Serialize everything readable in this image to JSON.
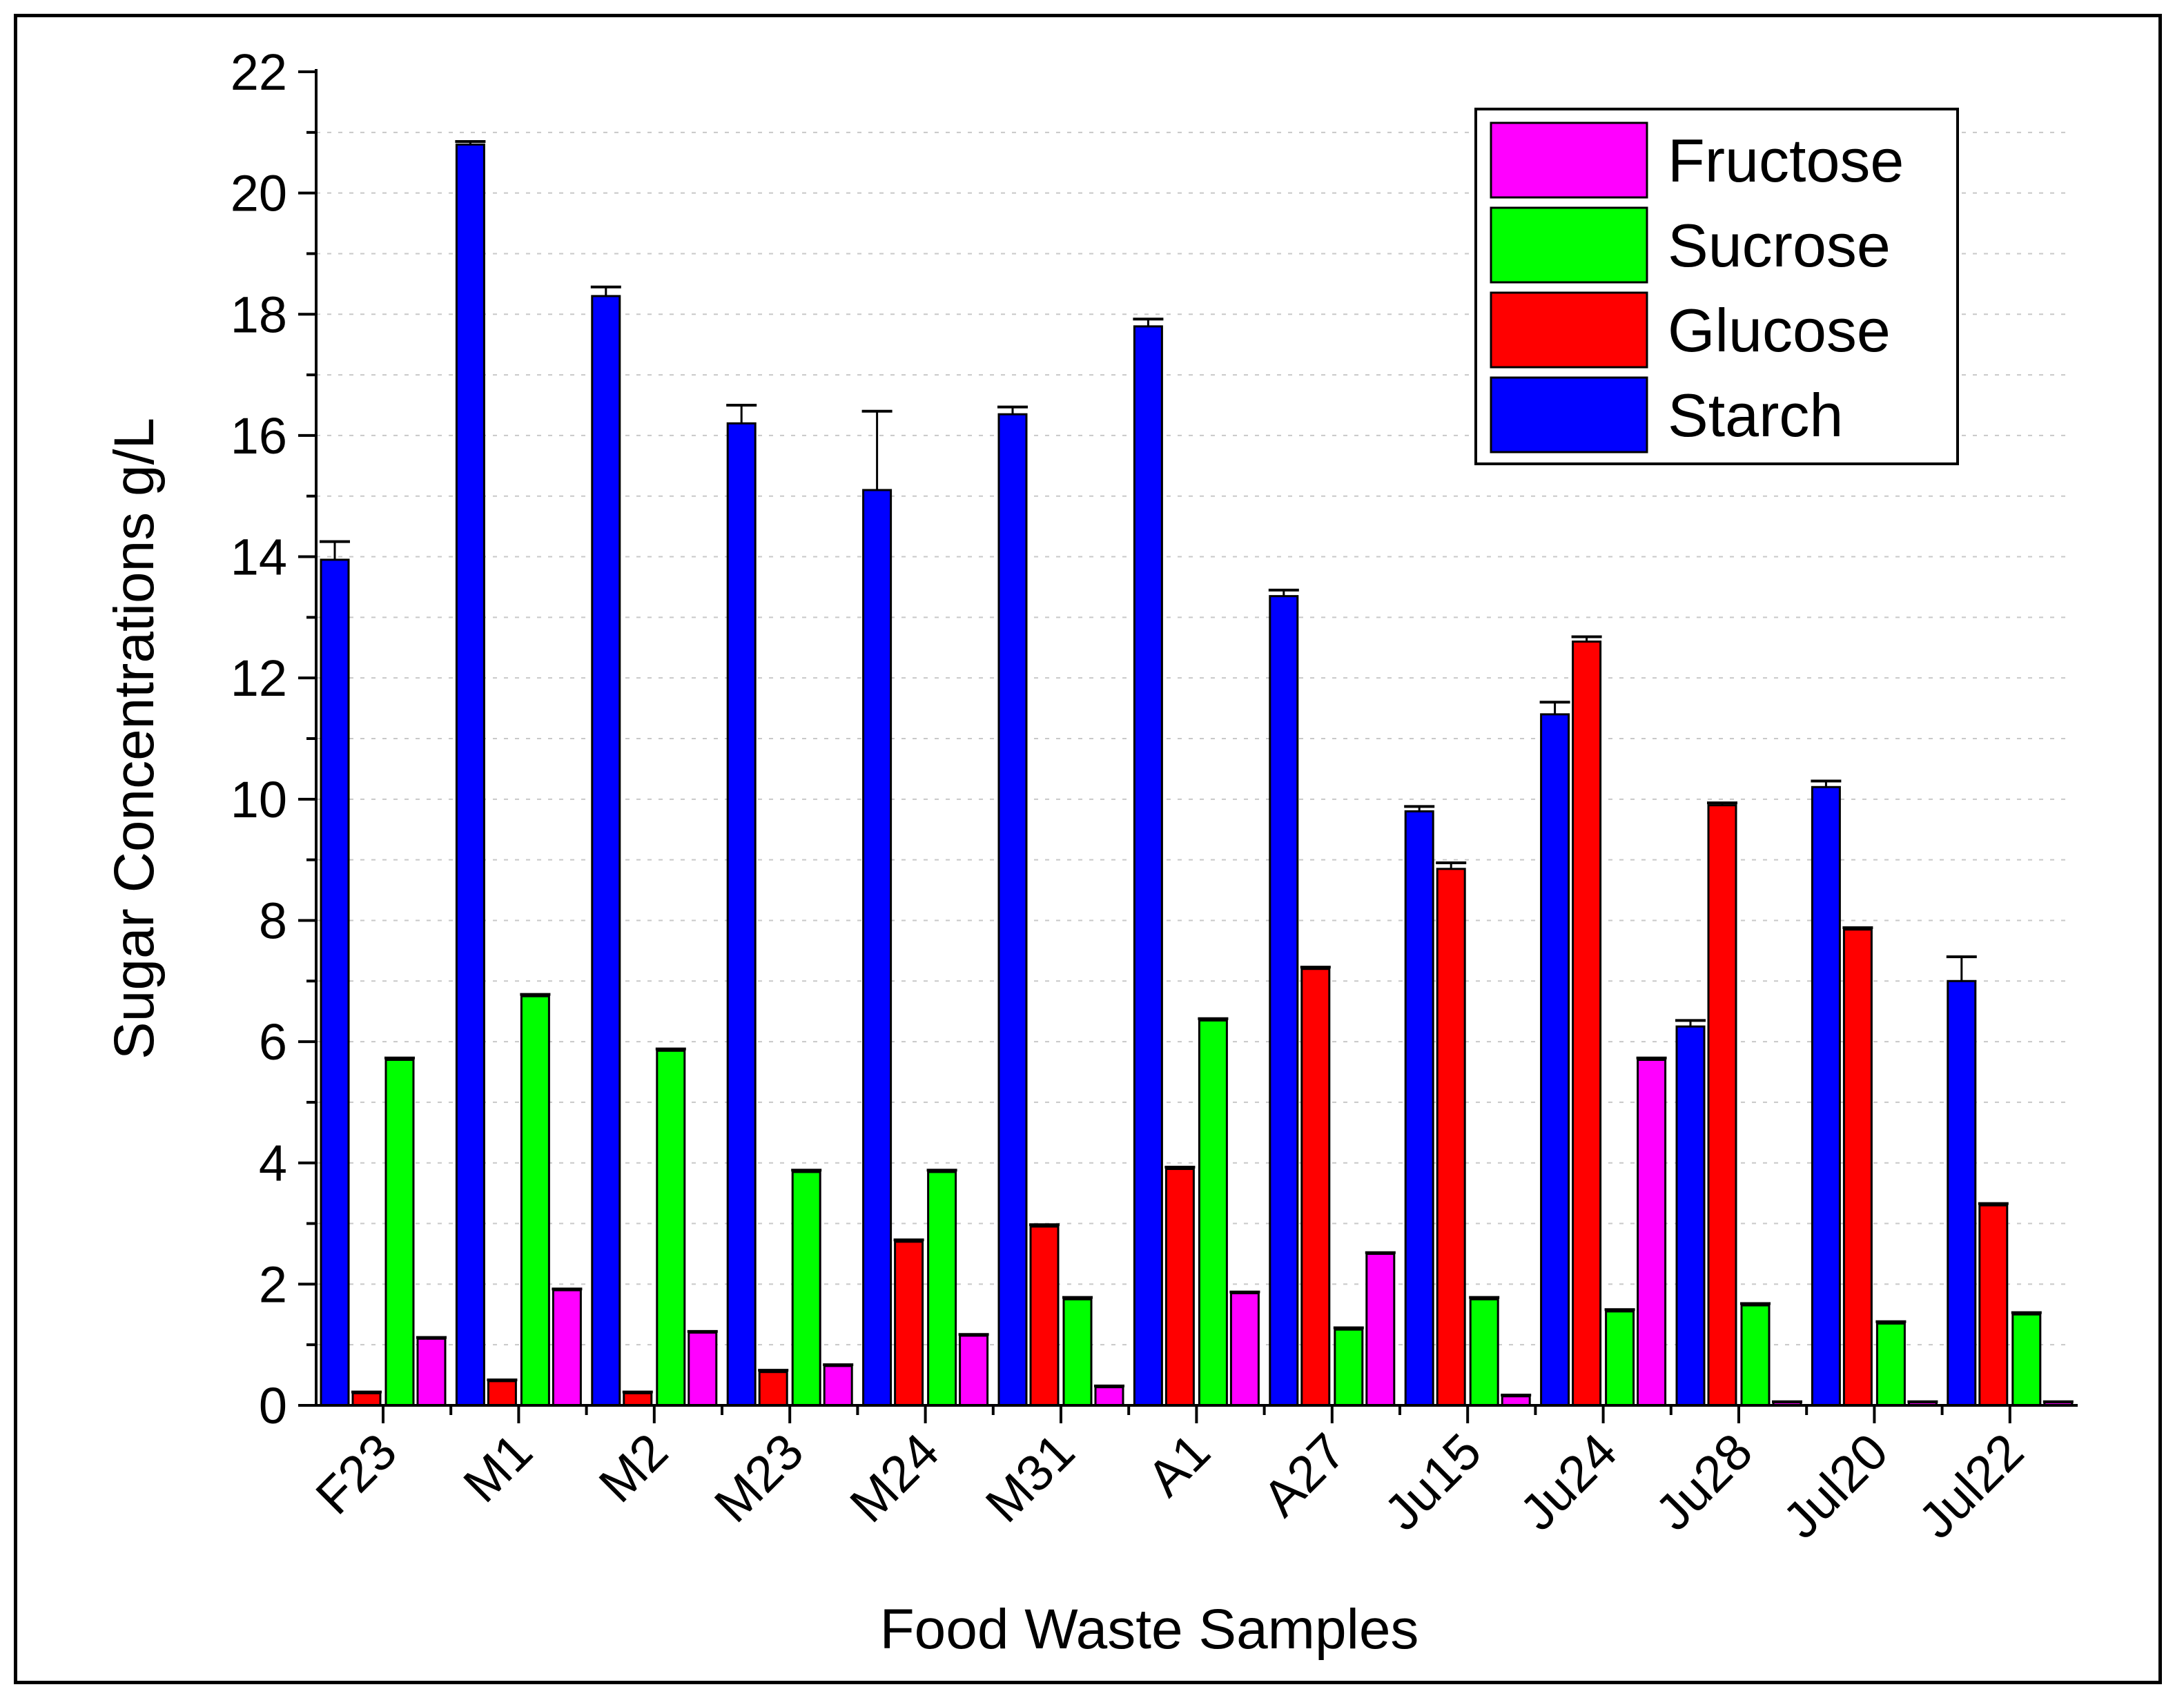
{
  "chart_data": {
    "type": "bar",
    "title": "",
    "xlabel": "Food Waste Samples",
    "ylabel": "Sugar Concentrations g/L",
    "ylim": [
      0,
      22
    ],
    "yticks": [
      0,
      2,
      4,
      6,
      8,
      10,
      12,
      14,
      16,
      18,
      20,
      22
    ],
    "grid": "horizontal dotted",
    "legend_position": "top-right",
    "categories": [
      "F23",
      "M1",
      "M2",
      "M23",
      "M24",
      "M31",
      "A1",
      "A27",
      "Ju15",
      "Ju24",
      "Ju28",
      "Jul20",
      "Jul22"
    ],
    "series": [
      {
        "name": "Starch",
        "color": "#0000ff",
        "values": [
          13.95,
          20.8,
          18.3,
          16.2,
          15.1,
          16.35,
          17.8,
          13.35,
          9.8,
          11.4,
          6.25,
          10.2,
          7.0
        ],
        "errors": [
          0.3,
          0.05,
          0.15,
          0.3,
          1.3,
          0.12,
          0.12,
          0.1,
          0.08,
          0.2,
          0.1,
          0.1,
          0.4
        ]
      },
      {
        "name": "Glucose",
        "color": "#ff0000",
        "values": [
          0.2,
          0.4,
          0.2,
          0.55,
          2.7,
          2.95,
          3.9,
          7.2,
          8.85,
          12.6,
          9.9,
          7.85,
          3.3
        ],
        "errors": [
          0.02,
          0.02,
          0.02,
          0.03,
          0.03,
          0.03,
          0.03,
          0.03,
          0.1,
          0.08,
          0.04,
          0.03,
          0.03
        ]
      },
      {
        "name": "Sucrose",
        "color": "#00ff00",
        "values": [
          5.7,
          6.75,
          5.85,
          3.85,
          3.85,
          1.75,
          6.35,
          1.25,
          1.75,
          1.55,
          1.65,
          1.35,
          1.5
        ],
        "errors": [
          0.03,
          0.03,
          0.03,
          0.03,
          0.03,
          0.03,
          0.03,
          0.03,
          0.03,
          0.03,
          0.03,
          0.03,
          0.03
        ]
      },
      {
        "name": "Fructose",
        "color": "#ff00ff",
        "values": [
          1.1,
          1.9,
          1.2,
          0.65,
          1.15,
          0.3,
          1.85,
          2.5,
          0.15,
          5.7,
          0.05,
          0.05,
          0.05
        ],
        "errors": [
          0.02,
          0.02,
          0.02,
          0.02,
          0.02,
          0.02,
          0.02,
          0.02,
          0.02,
          0.03,
          0.01,
          0.01,
          0.01
        ]
      }
    ],
    "legend_order": [
      "Fructose",
      "Sucrose",
      "Glucose",
      "Starch"
    ]
  }
}
